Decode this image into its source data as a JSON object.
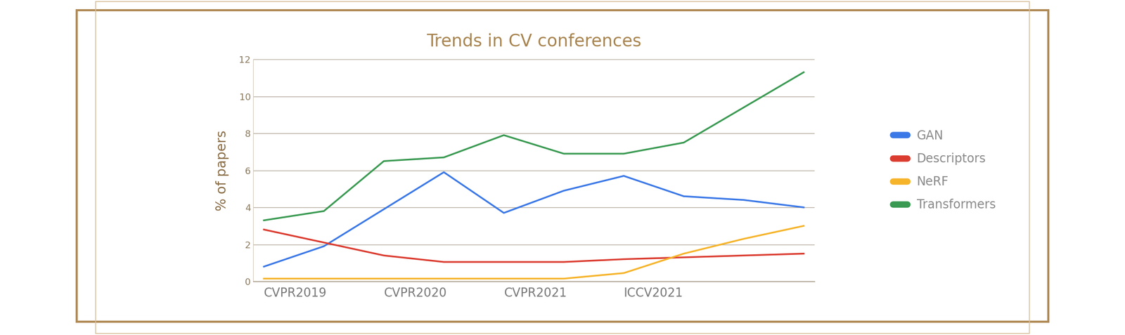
{
  "chart_data": {
    "type": "line",
    "title": "Trends in CV conferences",
    "y_label": "% of papers",
    "categories": [
      "CVPR2019",
      null,
      "CVPR2020",
      null,
      "CVPR2021",
      null,
      "ICCV2021",
      null,
      null,
      null
    ],
    "series": [
      {
        "name": "GAN",
        "color": "#3b78e7",
        "values": [
          0.8,
          1.9,
          3.9,
          5.9,
          3.7,
          4.9,
          5.7,
          4.6,
          4.4,
          4.0
        ]
      },
      {
        "name": "Descriptors",
        "color": "#db3c30",
        "values": [
          2.8,
          2.1,
          1.4,
          1.05,
          1.05,
          1.05,
          1.2,
          1.3,
          1.4,
          1.5
        ]
      },
      {
        "name": "NeRF",
        "color": "#f6b42a",
        "values": [
          0.15,
          0.15,
          0.15,
          0.15,
          0.15,
          0.15,
          0.45,
          1.5,
          2.3,
          3.0
        ]
      },
      {
        "name": "Transformers",
        "color": "#3a9a52",
        "values": [
          3.3,
          3.8,
          6.5,
          6.7,
          7.9,
          6.9,
          6.9,
          7.5,
          9.4,
          11.3
        ]
      }
    ],
    "ylim": [
      0,
      12
    ],
    "yticks": [
      0,
      2,
      4,
      6,
      8,
      10,
      12
    ],
    "grid": true,
    "legend": "right"
  }
}
